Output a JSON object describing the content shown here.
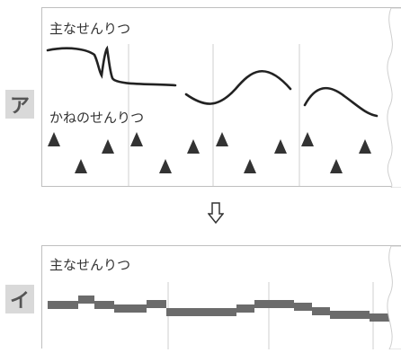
{
  "panel_a": {
    "label": "ア",
    "main_melody_label": "主なせんりつ",
    "harmony_label": "かねのせんりつ"
  },
  "panel_b": {
    "label": "イ",
    "main_melody_label": "主なせんりつ"
  },
  "arrow_icon": "down-arrow-icon",
  "colors": {
    "line": "#222222",
    "triangle": "#333333",
    "bar": "#6b6b6b",
    "border": "#bfbfbf",
    "label_bg": "#d9d9d9"
  }
}
